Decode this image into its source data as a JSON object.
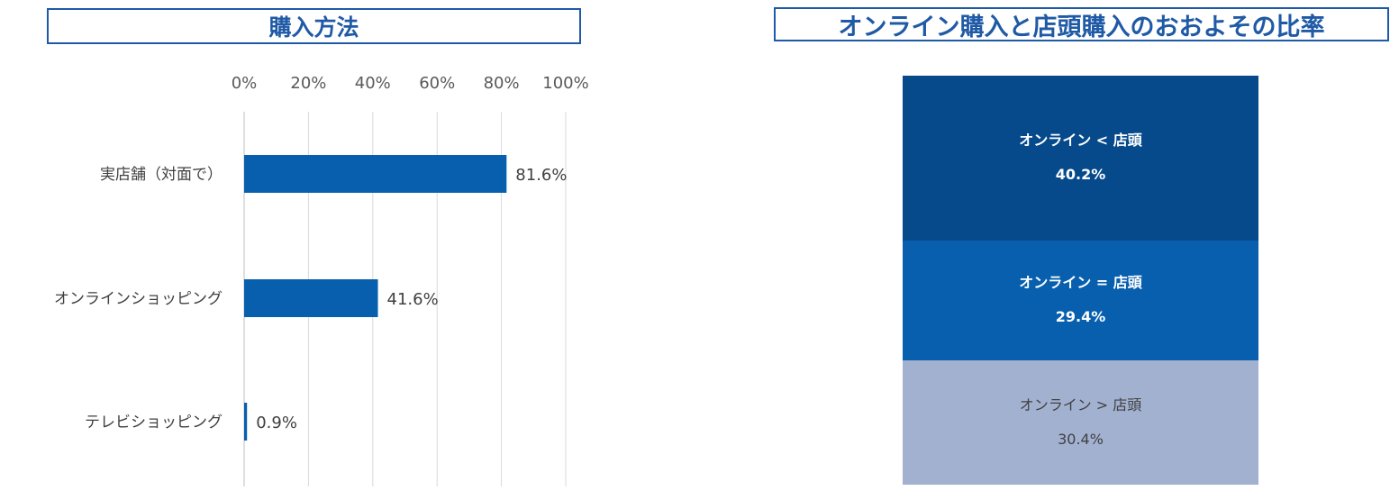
{
  "left_title": "購入方法",
  "right_title": "オンライン購入と店頭購入のおおよその比率",
  "chart_data": [
    {
      "type": "bar",
      "orientation": "horizontal",
      "categories": [
        "実店舗（対面で）",
        "オンラインショッピング",
        "テレビショッピング"
      ],
      "values": [
        81.6,
        41.6,
        0.9
      ],
      "value_labels": [
        "81.6%",
        "41.6%",
        "0.9%"
      ],
      "xlim": [
        0,
        100
      ],
      "ticks": [
        0,
        20,
        40,
        60,
        80,
        100
      ],
      "tick_labels": [
        "0%",
        "20%",
        "40%",
        "60%",
        "80%",
        "100%"
      ],
      "axis_position": "top",
      "grid": true,
      "bar_color": "#075fae"
    },
    {
      "type": "bar",
      "stacked": true,
      "segments": [
        {
          "label": "オンライン < 店頭",
          "value": 40.2,
          "value_label": "40.2%",
          "color": "#064a8c"
        },
        {
          "label": "オンライン = 店頭",
          "value": 29.4,
          "value_label": "29.4%",
          "color": "#075fae"
        },
        {
          "label": "オンライン > 店頭",
          "value": 30.4,
          "value_label": "30.4%",
          "color": "#a3b1d1"
        }
      ]
    }
  ]
}
